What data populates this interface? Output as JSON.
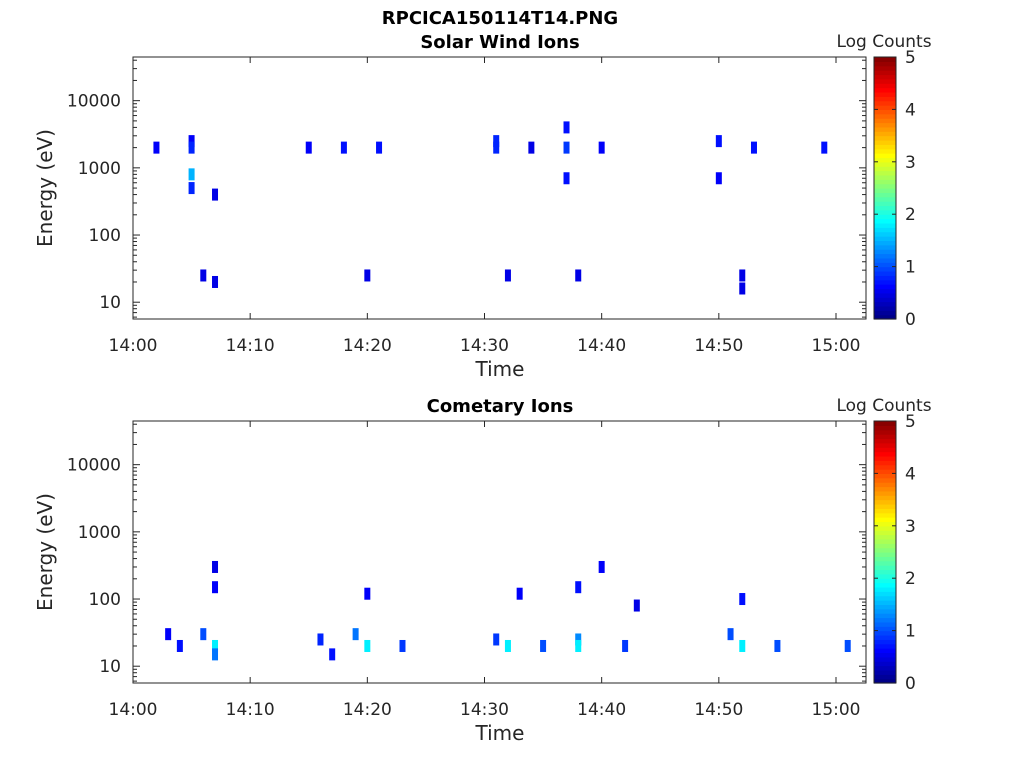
{
  "figure_title": "RPCICA150114T14.PNG",
  "chart_data": [
    {
      "type": "heatmap",
      "title": "Solar Wind Ions",
      "xlabel": "Time",
      "ylabel": "Energy (eV)",
      "x_ticks": [
        "14:00",
        "14:10",
        "14:20",
        "14:30",
        "14:40",
        "14:50",
        "15:00"
      ],
      "y_scale": "log",
      "y_ticks": [
        "10",
        "100",
        "1000",
        "10000"
      ],
      "colorbar": {
        "label": "Log Counts",
        "ticks": [
          "0",
          "1",
          "2",
          "3",
          "4",
          "5"
        ],
        "range": [
          0,
          5
        ],
        "colormap": "jet"
      },
      "points": [
        {
          "t": "14:02",
          "e": 2000,
          "v": 0.6
        },
        {
          "t": "14:05",
          "e": 2500,
          "v": 0.6
        },
        {
          "t": "14:05",
          "e": 2000,
          "v": 0.8
        },
        {
          "t": "14:05",
          "e": 800,
          "v": 1.5
        },
        {
          "t": "14:05",
          "e": 500,
          "v": 0.8
        },
        {
          "t": "14:07",
          "e": 400,
          "v": 0.5
        },
        {
          "t": "14:15",
          "e": 2000,
          "v": 0.6
        },
        {
          "t": "14:18",
          "e": 2000,
          "v": 0.7
        },
        {
          "t": "14:21",
          "e": 2000,
          "v": 0.7
        },
        {
          "t": "14:31",
          "e": 2500,
          "v": 0.8
        },
        {
          "t": "14:31",
          "e": 2000,
          "v": 0.8
        },
        {
          "t": "14:34",
          "e": 2000,
          "v": 0.5
        },
        {
          "t": "14:37",
          "e": 4000,
          "v": 0.7
        },
        {
          "t": "14:37",
          "e": 2000,
          "v": 0.9
        },
        {
          "t": "14:37",
          "e": 700,
          "v": 0.7
        },
        {
          "t": "14:40",
          "e": 2000,
          "v": 0.6
        },
        {
          "t": "14:50",
          "e": 2500,
          "v": 0.7
        },
        {
          "t": "14:50",
          "e": 700,
          "v": 0.6
        },
        {
          "t": "14:53",
          "e": 2000,
          "v": 0.7
        },
        {
          "t": "14:59",
          "e": 2000,
          "v": 0.7
        },
        {
          "t": "14:06",
          "e": 25,
          "v": 0.5
        },
        {
          "t": "14:07",
          "e": 20,
          "v": 0.5
        },
        {
          "t": "14:20",
          "e": 25,
          "v": 0.5
        },
        {
          "t": "14:32",
          "e": 25,
          "v": 0.5
        },
        {
          "t": "14:38",
          "e": 25,
          "v": 0.5
        },
        {
          "t": "14:52",
          "e": 25,
          "v": 0.5
        },
        {
          "t": "14:52",
          "e": 16,
          "v": 0.5
        }
      ]
    },
    {
      "type": "heatmap",
      "title": "Cometary Ions",
      "xlabel": "Time",
      "ylabel": "Energy (eV)",
      "x_ticks": [
        "14:00",
        "14:10",
        "14:20",
        "14:30",
        "14:40",
        "14:50",
        "15:00"
      ],
      "y_scale": "log",
      "y_ticks": [
        "10",
        "100",
        "1000",
        "10000"
      ],
      "colorbar": {
        "label": "Log Counts",
        "ticks": [
          "0",
          "1",
          "2",
          "3",
          "4",
          "5"
        ],
        "range": [
          0,
          5
        ],
        "colormap": "jet"
      },
      "points": [
        {
          "t": "14:03",
          "e": 30,
          "v": 0.6
        },
        {
          "t": "14:04",
          "e": 20,
          "v": 0.7
        },
        {
          "t": "14:06",
          "e": 30,
          "v": 1.0
        },
        {
          "t": "14:07",
          "e": 20,
          "v": 1.8
        },
        {
          "t": "14:07",
          "e": 15,
          "v": 1.2
        },
        {
          "t": "14:07",
          "e": 150,
          "v": 0.6
        },
        {
          "t": "14:07",
          "e": 300,
          "v": 0.5
        },
        {
          "t": "14:16",
          "e": 25,
          "v": 0.8
        },
        {
          "t": "14:17",
          "e": 15,
          "v": 0.7
        },
        {
          "t": "14:19",
          "e": 30,
          "v": 1.2
        },
        {
          "t": "14:20",
          "e": 20,
          "v": 1.8
        },
        {
          "t": "14:20",
          "e": 120,
          "v": 0.6
        },
        {
          "t": "14:23",
          "e": 20,
          "v": 0.9
        },
        {
          "t": "14:31",
          "e": 25,
          "v": 0.9
        },
        {
          "t": "14:32",
          "e": 20,
          "v": 1.8
        },
        {
          "t": "14:33",
          "e": 120,
          "v": 0.6
        },
        {
          "t": "14:35",
          "e": 20,
          "v": 1.0
        },
        {
          "t": "14:38",
          "e": 25,
          "v": 1.3
        },
        {
          "t": "14:38",
          "e": 20,
          "v": 1.8
        },
        {
          "t": "14:38",
          "e": 150,
          "v": 0.7
        },
        {
          "t": "14:40",
          "e": 300,
          "v": 0.6
        },
        {
          "t": "14:42",
          "e": 20,
          "v": 0.9
        },
        {
          "t": "14:43",
          "e": 80,
          "v": 0.5
        },
        {
          "t": "14:51",
          "e": 30,
          "v": 1.0
        },
        {
          "t": "14:52",
          "e": 20,
          "v": 1.8
        },
        {
          "t": "14:52",
          "e": 100,
          "v": 0.7
        },
        {
          "t": "14:55",
          "e": 20,
          "v": 1.0
        },
        {
          "t": "15:01",
          "e": 20,
          "v": 1.0
        }
      ]
    }
  ]
}
